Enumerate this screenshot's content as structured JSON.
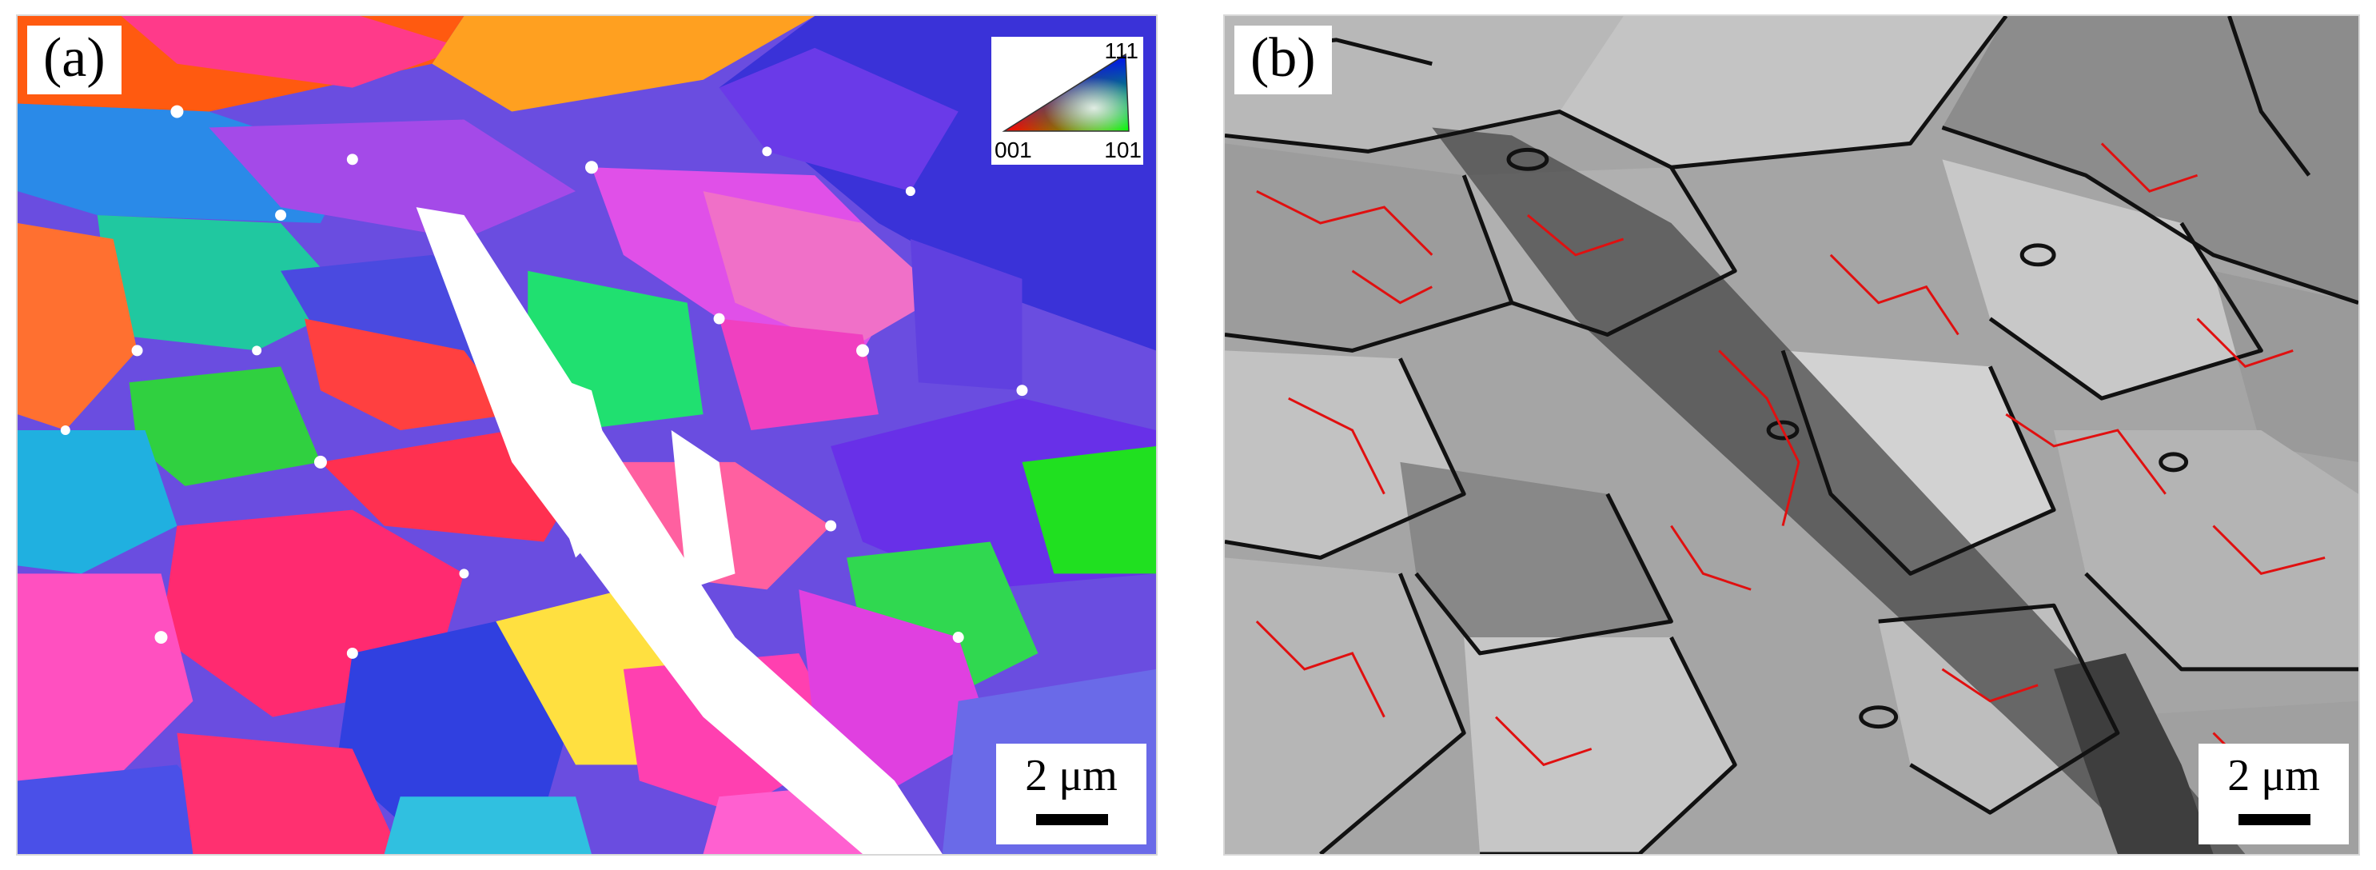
{
  "panel_a": {
    "label": "(a)",
    "scale_bar": "2 μm",
    "ipf_key": {
      "icon": "ipf-color-triangle-icon",
      "label_111": "111",
      "label_001": "001",
      "label_101": "101"
    }
  },
  "panel_b": {
    "label": "(b)",
    "scale_bar": "2 μm"
  },
  "colors": {
    "high_angle_boundary": "#111111",
    "low_angle_boundary": "#e01010"
  }
}
